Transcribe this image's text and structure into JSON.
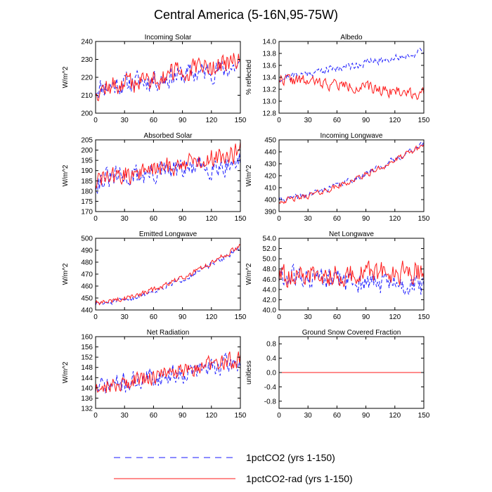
{
  "figure": {
    "title": "Central America (5-16N,95-75W)"
  },
  "legend": [
    {
      "label": "1pctCO2 (yrs 1-150)",
      "color": "#1a1aff",
      "dash": true
    },
    {
      "label": "1pctCO2-rad (yrs 1-150)",
      "color": "#ff1a1a",
      "dash": false
    }
  ],
  "chart_data": [
    {
      "type": "line",
      "title": "Incoming Solar",
      "ylabel": "W/m^2",
      "xlim": [
        0,
        150
      ],
      "xticks": [
        0,
        30,
        60,
        90,
        120,
        150
      ],
      "ylim": [
        200,
        240
      ],
      "yticks": [
        "200",
        "210",
        "220",
        "230",
        "240"
      ],
      "series": [
        {
          "name": "1pctCO2 (yrs 1-150)",
          "color": "#1a1aff",
          "dash": true,
          "start": 214,
          "end": 226,
          "noise": 5.5,
          "seed": 11
        },
        {
          "name": "1pctCO2-rad (yrs 1-150)",
          "color": "#ff1a1a",
          "dash": false,
          "start": 213,
          "end": 229,
          "noise": 5.5,
          "seed": 12
        }
      ]
    },
    {
      "type": "line",
      "title": "Albedo",
      "ylabel": "% reflected",
      "xlim": [
        0,
        150
      ],
      "xticks": [
        0,
        30,
        60,
        90,
        120,
        150
      ],
      "ylim": [
        12.8,
        14.0
      ],
      "yticks": [
        "12.8",
        "13.0",
        "13.2",
        "13.4",
        "13.6",
        "13.8",
        "14.0"
      ],
      "series": [
        {
          "name": "1pctCO2 (yrs 1-150)",
          "color": "#1a1aff",
          "dash": true,
          "start": 13.38,
          "end": 13.82,
          "noise": 0.06,
          "seed": 21
        },
        {
          "name": "1pctCO2-rad (yrs 1-150)",
          "color": "#ff1a1a",
          "dash": false,
          "start": 13.38,
          "end": 13.12,
          "noise": 0.09,
          "seed": 22
        }
      ]
    },
    {
      "type": "line",
      "title": "Absorbed Solar",
      "ylabel": "W/m^2",
      "xlim": [
        0,
        150
      ],
      "xticks": [
        0,
        30,
        60,
        90,
        120,
        150
      ],
      "ylim": [
        170,
        205
      ],
      "yticks": [
        "170",
        "175",
        "180",
        "185",
        "190",
        "195",
        "200",
        "205"
      ],
      "series": [
        {
          "name": "1pctCO2 (yrs 1-150)",
          "color": "#1a1aff",
          "dash": true,
          "start": 185,
          "end": 194,
          "noise": 5,
          "seed": 31
        },
        {
          "name": "1pctCO2-rad (yrs 1-150)",
          "color": "#ff1a1a",
          "dash": false,
          "start": 185,
          "end": 199,
          "noise": 4.5,
          "seed": 32
        }
      ]
    },
    {
      "type": "line",
      "title": "Incoming Longwave",
      "ylabel": "W/m^2",
      "xlim": [
        0,
        150
      ],
      "xticks": [
        0,
        30,
        60,
        90,
        120,
        150
      ],
      "ylim": [
        390,
        450
      ],
      "yticks": [
        "390",
        "400",
        "410",
        "420",
        "430",
        "440",
        "450"
      ],
      "series": [
        {
          "name": "1pctCO2 (yrs 1-150)",
          "color": "#1a1aff",
          "dash": true,
          "start": 400,
          "end": 447,
          "curve": 1.5,
          "noise": 2.2,
          "seed": 41
        },
        {
          "name": "1pctCO2-rad (yrs 1-150)",
          "color": "#ff1a1a",
          "dash": false,
          "start": 399,
          "end": 446,
          "curve": 1.5,
          "noise": 2.2,
          "seed": 42
        }
      ]
    },
    {
      "type": "line",
      "title": "Emitted Longwave",
      "ylabel": "W/m^2",
      "xlim": [
        0,
        150
      ],
      "xticks": [
        0,
        30,
        60,
        90,
        120,
        150
      ],
      "ylim": [
        440,
        500
      ],
      "yticks": [
        "440",
        "450",
        "460",
        "470",
        "480",
        "490",
        "500"
      ],
      "series": [
        {
          "name": "1pctCO2 (yrs 1-150)",
          "color": "#1a1aff",
          "dash": true,
          "start": 445,
          "end": 492,
          "curve": 1.6,
          "noise": 2.0,
          "seed": 51
        },
        {
          "name": "1pctCO2-rad (yrs 1-150)",
          "color": "#ff1a1a",
          "dash": false,
          "start": 446,
          "end": 494,
          "curve": 1.6,
          "noise": 2.0,
          "seed": 52
        }
      ]
    },
    {
      "type": "line",
      "title": "Net Longwave",
      "ylabel": "W/m^2",
      "xlim": [
        0,
        150
      ],
      "xticks": [
        0,
        30,
        60,
        90,
        120,
        150
      ],
      "ylim": [
        40.0,
        54.0
      ],
      "yticks": [
        "40.0",
        "42.0",
        "44.0",
        "46.0",
        "48.0",
        "50.0",
        "52.0",
        "54.0"
      ],
      "series": [
        {
          "name": "1pctCO2 (yrs 1-150)",
          "color": "#1a1aff",
          "dash": true,
          "start": 46.5,
          "end": 44.5,
          "noise": 2.0,
          "seed": 61
        },
        {
          "name": "1pctCO2-rad (yrs 1-150)",
          "color": "#ff1a1a",
          "dash": false,
          "start": 46.5,
          "end": 47.5,
          "noise": 2.0,
          "seed": 62
        }
      ]
    },
    {
      "type": "line",
      "title": "Net Radiation",
      "ylabel": "W/m^2",
      "xlim": [
        0,
        150
      ],
      "xticks": [
        0,
        30,
        60,
        90,
        120,
        150
      ],
      "ylim": [
        132,
        160
      ],
      "yticks": [
        "132",
        "136",
        "140",
        "144",
        "148",
        "152",
        "156",
        "160"
      ],
      "series": [
        {
          "name": "1pctCO2 (yrs 1-150)",
          "color": "#1a1aff",
          "dash": true,
          "start": 140,
          "end": 150,
          "noise": 3.5,
          "seed": 71
        },
        {
          "name": "1pctCO2-rad (yrs 1-150)",
          "color": "#ff1a1a",
          "dash": false,
          "start": 140,
          "end": 151,
          "noise": 3.0,
          "seed": 72
        }
      ]
    },
    {
      "type": "line",
      "title": "Ground Snow Covered Fraction",
      "ylabel": "unitless",
      "xlim": [
        0,
        150
      ],
      "xticks": [
        0,
        30,
        60,
        90,
        120,
        150
      ],
      "ylim": [
        -1.0,
        1.0
      ],
      "yticks": [
        "-0.8",
        "-0.4",
        "0.0",
        "0.4",
        "0.8"
      ],
      "series": [
        {
          "name": "1pctCO2 (yrs 1-150)",
          "color": "#1a1aff",
          "dash": true,
          "start": 0,
          "end": 0,
          "noise": 0,
          "seed": 81
        },
        {
          "name": "1pctCO2-rad (yrs 1-150)",
          "color": "#ff1a1a",
          "dash": false,
          "start": 0,
          "end": 0,
          "noise": 0,
          "seed": 82
        }
      ]
    }
  ]
}
